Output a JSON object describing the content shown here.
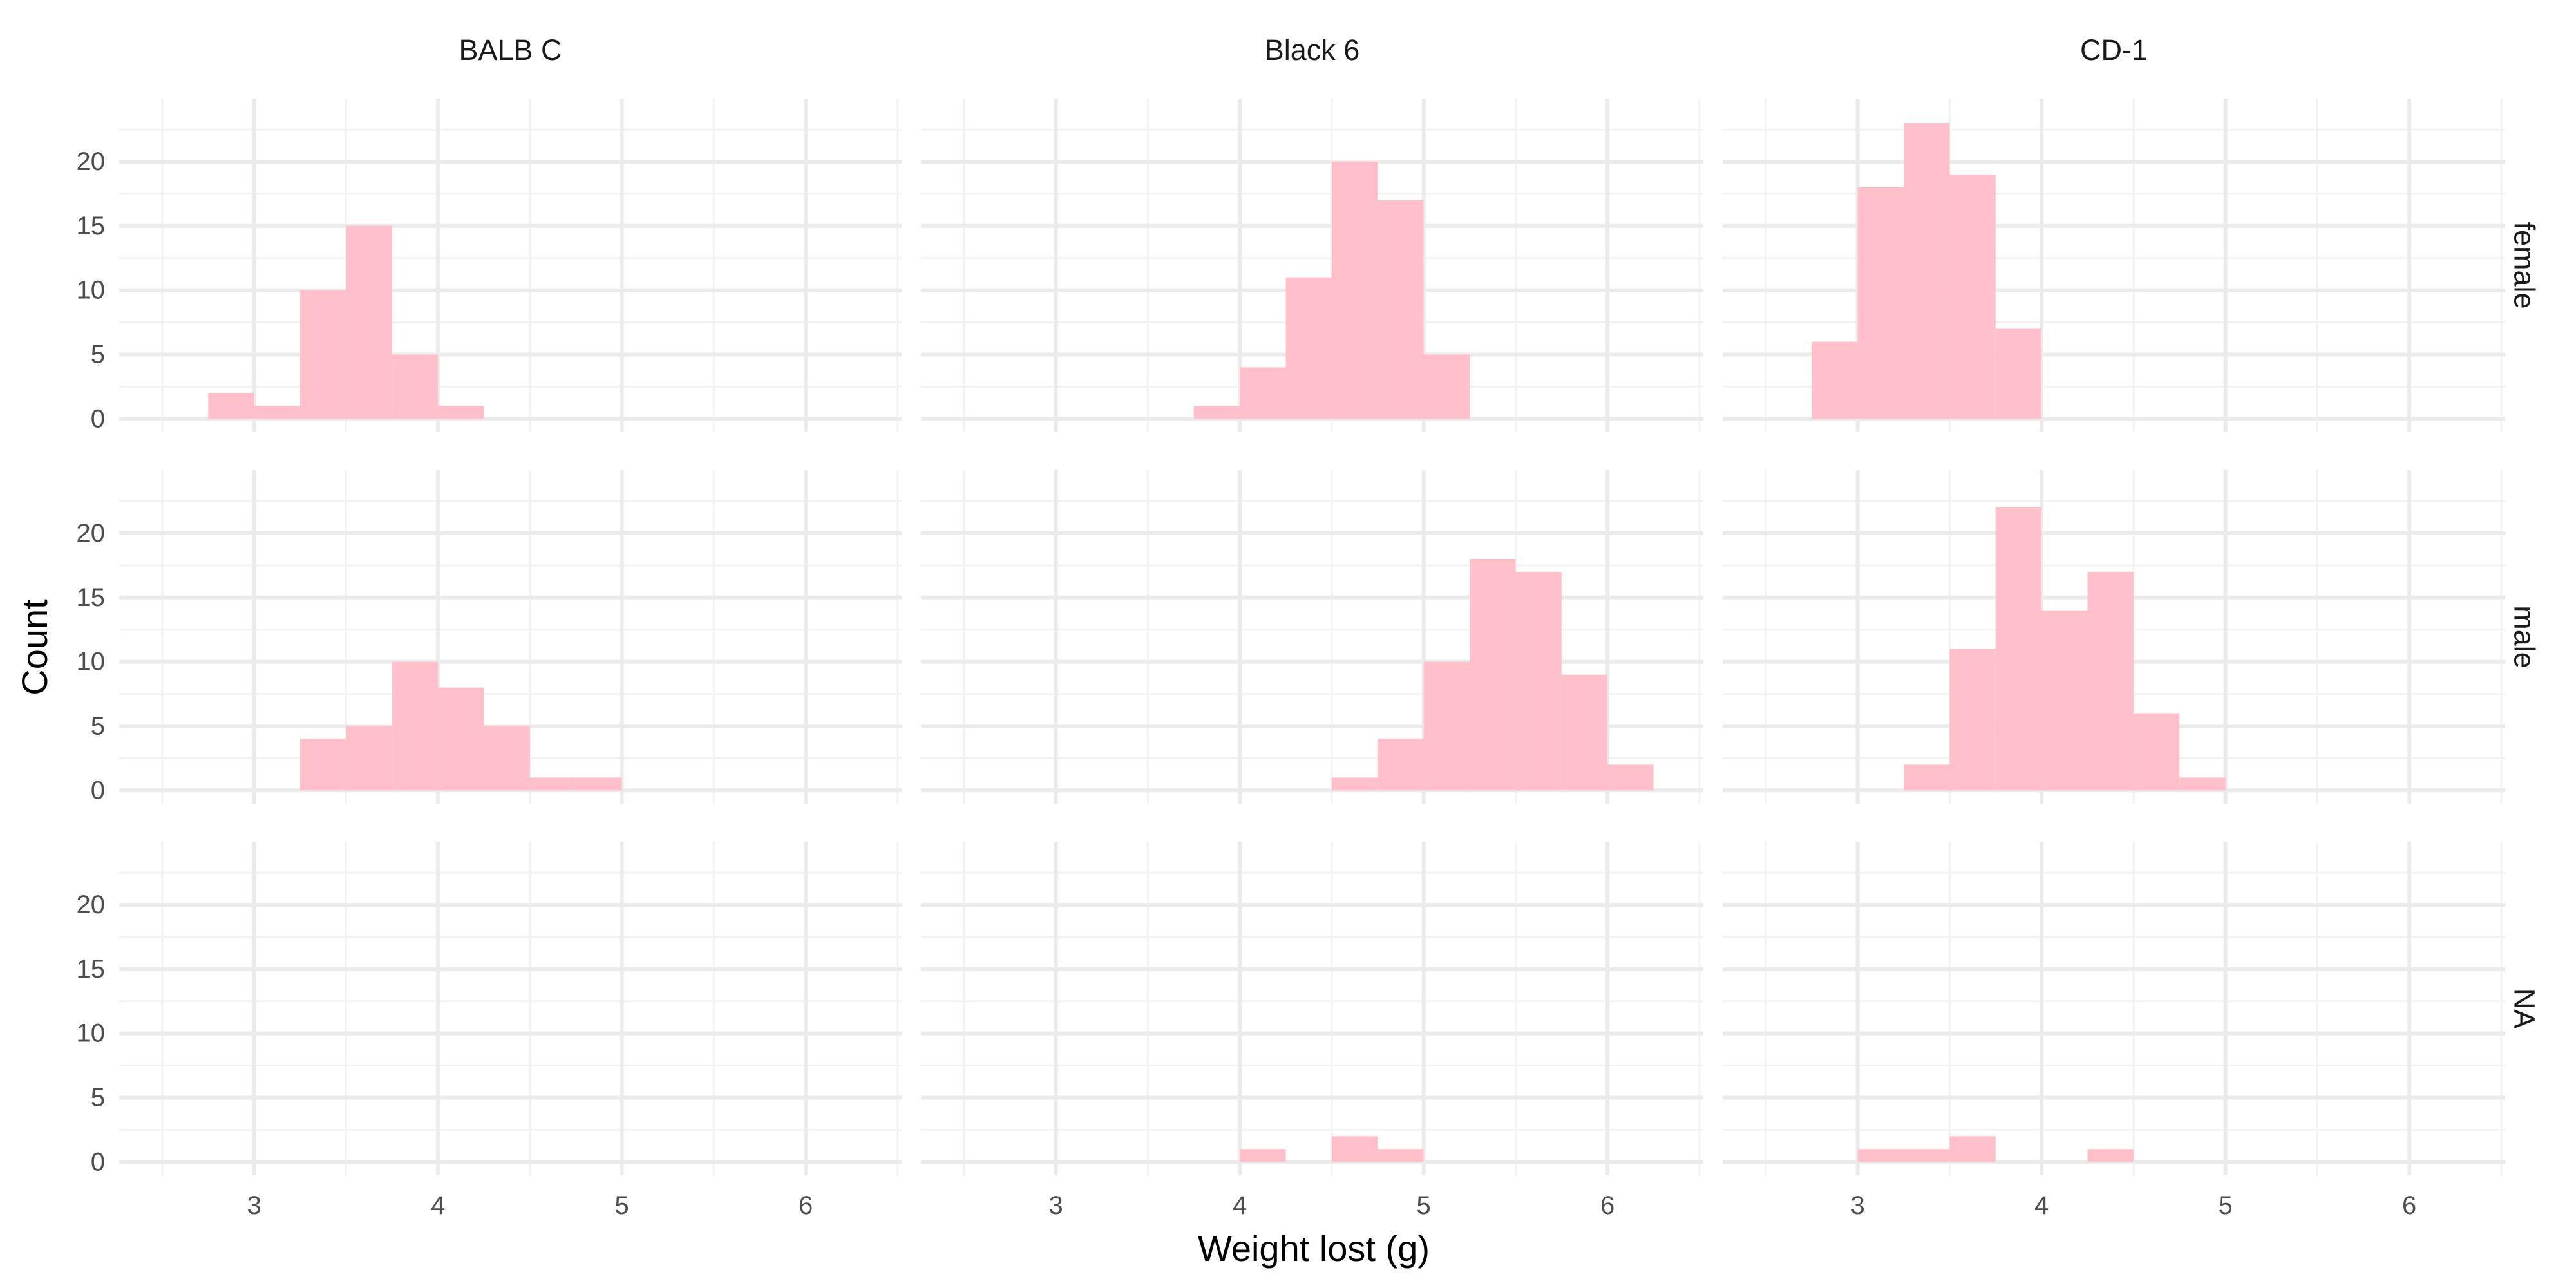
{
  "chart_data": {
    "type": "bar",
    "subtype": "faceted histogram",
    "title": "",
    "xlabel": "Weight lost (g)",
    "ylabel": "Count",
    "xlim": [
      2.5,
      6.5
    ],
    "ylim": [
      0,
      24
    ],
    "x_ticks": [
      3,
      4,
      5,
      6
    ],
    "y_ticks": [
      0,
      5,
      10,
      15,
      20
    ],
    "grid": true,
    "legend": "none",
    "bar_color": "#ffc0cb",
    "bin_width": 0.25,
    "column_labels": [
      "BALB C",
      "Black 6",
      "CD-1"
    ],
    "row_labels": [
      "female",
      "male",
      "NA"
    ],
    "panels": [
      {
        "strain": "BALB C",
        "sex": "female",
        "bins": [
          {
            "x0": 2.75,
            "x1": 3.0,
            "count": 2
          },
          {
            "x0": 3.0,
            "x1": 3.25,
            "count": 1
          },
          {
            "x0": 3.25,
            "x1": 3.5,
            "count": 10
          },
          {
            "x0": 3.5,
            "x1": 3.75,
            "count": 15
          },
          {
            "x0": 3.75,
            "x1": 4.0,
            "count": 5
          },
          {
            "x0": 4.0,
            "x1": 4.25,
            "count": 1
          }
        ]
      },
      {
        "strain": "Black 6",
        "sex": "female",
        "bins": [
          {
            "x0": 3.75,
            "x1": 4.0,
            "count": 1
          },
          {
            "x0": 4.0,
            "x1": 4.25,
            "count": 4
          },
          {
            "x0": 4.25,
            "x1": 4.5,
            "count": 11
          },
          {
            "x0": 4.5,
            "x1": 4.75,
            "count": 20
          },
          {
            "x0": 4.75,
            "x1": 5.0,
            "count": 17
          },
          {
            "x0": 5.0,
            "x1": 5.25,
            "count": 5
          }
        ]
      },
      {
        "strain": "CD-1",
        "sex": "female",
        "bins": [
          {
            "x0": 2.75,
            "x1": 3.0,
            "count": 6
          },
          {
            "x0": 3.0,
            "x1": 3.25,
            "count": 18
          },
          {
            "x0": 3.25,
            "x1": 3.5,
            "count": 23
          },
          {
            "x0": 3.5,
            "x1": 3.75,
            "count": 19
          },
          {
            "x0": 3.75,
            "x1": 4.0,
            "count": 7
          }
        ]
      },
      {
        "strain": "BALB C",
        "sex": "male",
        "bins": [
          {
            "x0": 3.25,
            "x1": 3.5,
            "count": 4
          },
          {
            "x0": 3.5,
            "x1": 3.75,
            "count": 5
          },
          {
            "x0": 3.75,
            "x1": 4.0,
            "count": 10
          },
          {
            "x0": 4.0,
            "x1": 4.25,
            "count": 8
          },
          {
            "x0": 4.25,
            "x1": 4.5,
            "count": 5
          },
          {
            "x0": 4.5,
            "x1": 4.75,
            "count": 1
          },
          {
            "x0": 4.75,
            "x1": 5.0,
            "count": 1
          }
        ]
      },
      {
        "strain": "Black 6",
        "sex": "male",
        "bins": [
          {
            "x0": 4.5,
            "x1": 4.75,
            "count": 1
          },
          {
            "x0": 4.75,
            "x1": 5.0,
            "count": 4
          },
          {
            "x0": 5.0,
            "x1": 5.25,
            "count": 10
          },
          {
            "x0": 5.25,
            "x1": 5.5,
            "count": 18
          },
          {
            "x0": 5.5,
            "x1": 5.75,
            "count": 17
          },
          {
            "x0": 5.75,
            "x1": 6.0,
            "count": 9
          },
          {
            "x0": 6.0,
            "x1": 6.25,
            "count": 2
          }
        ]
      },
      {
        "strain": "CD-1",
        "sex": "male",
        "bins": [
          {
            "x0": 3.25,
            "x1": 3.5,
            "count": 2
          },
          {
            "x0": 3.5,
            "x1": 3.75,
            "count": 11
          },
          {
            "x0": 3.75,
            "x1": 4.0,
            "count": 22
          },
          {
            "x0": 4.0,
            "x1": 4.25,
            "count": 14
          },
          {
            "x0": 4.25,
            "x1": 4.5,
            "count": 17
          },
          {
            "x0": 4.5,
            "x1": 4.75,
            "count": 6
          },
          {
            "x0": 4.75,
            "x1": 5.0,
            "count": 1
          }
        ]
      },
      {
        "strain": "BALB C",
        "sex": "NA",
        "bins": []
      },
      {
        "strain": "Black 6",
        "sex": "NA",
        "bins": [
          {
            "x0": 4.0,
            "x1": 4.25,
            "count": 1
          },
          {
            "x0": 4.5,
            "x1": 4.75,
            "count": 2
          },
          {
            "x0": 4.75,
            "x1": 5.0,
            "count": 1
          }
        ]
      },
      {
        "strain": "CD-1",
        "sex": "NA",
        "bins": [
          {
            "x0": 3.0,
            "x1": 3.25,
            "count": 1
          },
          {
            "x0": 3.25,
            "x1": 3.5,
            "count": 1
          },
          {
            "x0": 3.5,
            "x1": 3.75,
            "count": 2
          },
          {
            "x0": 4.25,
            "x1": 4.5,
            "count": 1
          }
        ]
      }
    ]
  }
}
